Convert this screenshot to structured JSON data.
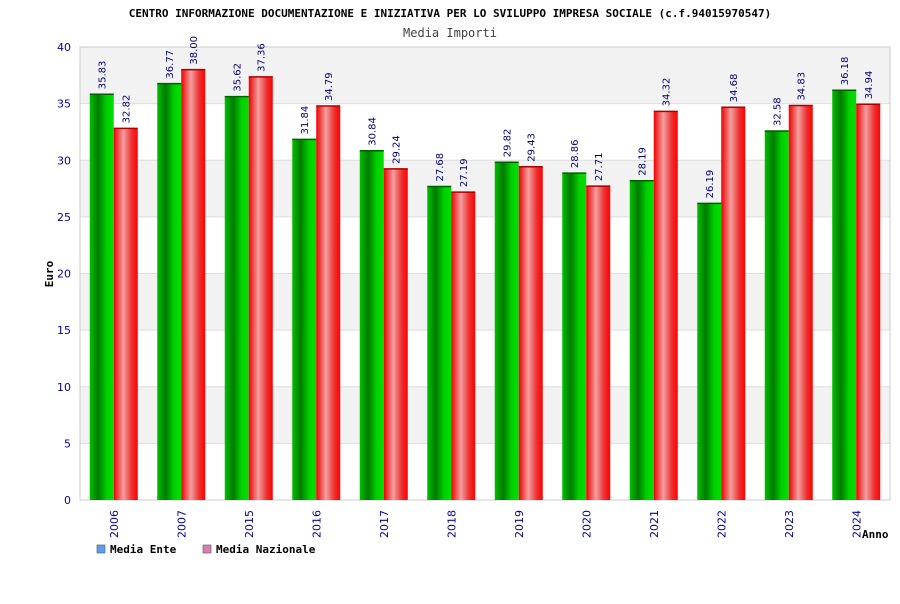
{
  "chart_data": {
    "type": "bar",
    "title": "CENTRO INFORMAZIONE DOCUMENTAZIONE E INIZIATIVA PER LO SVILUPPO IMPRESA SOCIALE (c.f.94015970547)",
    "subtitle": "Media Importi",
    "xlabel": "Anno",
    "ylabel": "Euro",
    "ylim": [
      0,
      40
    ],
    "yticks": [
      0,
      5,
      10,
      15,
      20,
      25,
      30,
      35,
      40
    ],
    "grid": true,
    "legend_position": "bottom-left",
    "categories": [
      "2006",
      "2007",
      "2015",
      "2016",
      "2017",
      "2018",
      "2019",
      "2020",
      "2021",
      "2022",
      "2023",
      "2024"
    ],
    "series": [
      {
        "name": "Media Ente",
        "color": "#00b000",
        "legend_color": "#5aa0e8",
        "values": [
          35.83,
          36.77,
          35.62,
          31.84,
          30.84,
          27.68,
          29.82,
          28.86,
          28.19,
          26.19,
          32.58,
          36.18
        ]
      },
      {
        "name": "Media Nazionale",
        "color": "#ee0000",
        "legend_color": "#d97fb0",
        "values": [
          32.82,
          38.0,
          37.36,
          34.79,
          29.24,
          27.19,
          29.43,
          27.71,
          34.32,
          34.68,
          34.83,
          34.94
        ]
      }
    ],
    "value_labels": [
      [
        "35.83",
        "36.77",
        "35.62",
        "31.84",
        "30.84",
        "27.68",
        "29.82",
        "28.86",
        "28.19",
        "26.19",
        "32.58",
        "36.18"
      ],
      [
        "32.82",
        "38.00",
        "37.36",
        "34.79",
        "29.24",
        "27.19",
        "29.43",
        "27.71",
        "34.32",
        "34.68",
        "34.83",
        "34.94"
      ]
    ]
  }
}
